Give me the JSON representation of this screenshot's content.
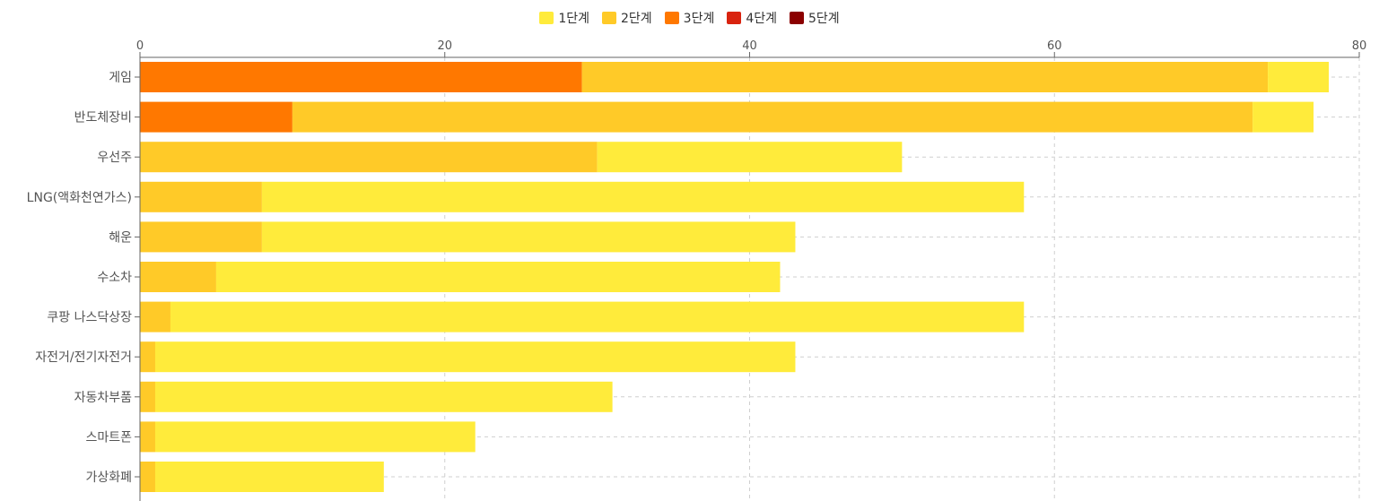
{
  "chart_data": {
    "type": "bar",
    "orientation": "horizontal",
    "stacked": true,
    "categories": [
      "게임",
      "반도체장비",
      "우선주",
      "LNG(액화천연가스)",
      "해운",
      "수소차",
      "쿠팡 나스닥상장",
      "자전거/전기자전거",
      "자동차부품",
      "스마트폰",
      "가상화폐"
    ],
    "series": [
      {
        "name": "1단계",
        "color": "#ffeb3b",
        "values": [
          4,
          4,
          20,
          50,
          35,
          37,
          56,
          42,
          30,
          21,
          15
        ]
      },
      {
        "name": "2단계",
        "color": "#ffca28",
        "values": [
          45,
          63,
          30,
          8,
          8,
          5,
          2,
          1,
          1,
          1,
          1
        ]
      },
      {
        "name": "3단계",
        "color": "#ff7800",
        "values": [
          29,
          10,
          0,
          0,
          0,
          0,
          0,
          0,
          0,
          0,
          0
        ]
      },
      {
        "name": "4단계",
        "color": "#d9230f",
        "values": [
          0,
          0,
          0,
          0,
          0,
          0,
          0,
          0,
          0,
          0,
          0
        ]
      },
      {
        "name": "5단계",
        "color": "#8b0000",
        "values": [
          0,
          0,
          0,
          0,
          0,
          0,
          0,
          0,
          0,
          0,
          0
        ]
      }
    ],
    "stack_order": [
      "5단계",
      "4단계",
      "3단계",
      "2단계",
      "1단계"
    ],
    "xlim": [
      0,
      80
    ],
    "xticks": [
      0,
      20,
      40,
      60,
      80
    ],
    "x_axis_position": "top",
    "grid": true,
    "legend_position": "top-center"
  }
}
